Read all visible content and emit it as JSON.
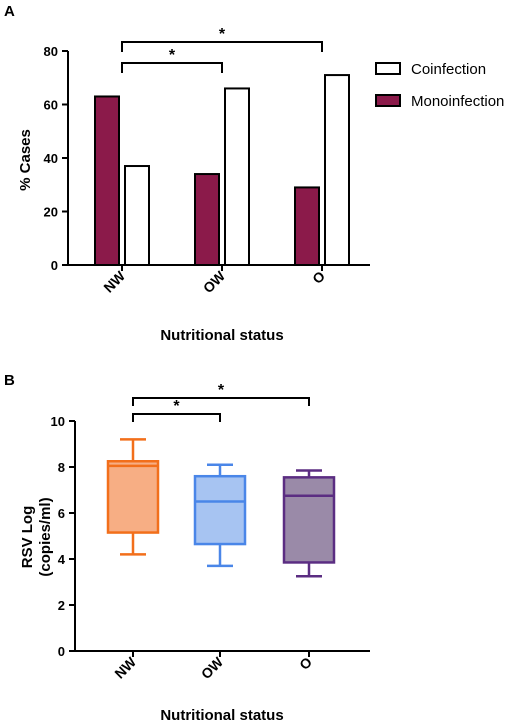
{
  "chart_data": [
    {
      "panel": "A",
      "type": "bar",
      "categories": [
        "NW",
        "OW",
        "O"
      ],
      "series": [
        {
          "name": "Monoinfection",
          "values": [
            63,
            34,
            29
          ],
          "color": "#8b1a4a"
        },
        {
          "name": "Coinfection",
          "values": [
            37,
            66,
            71
          ],
          "color": "#ffffff"
        }
      ],
      "ylabel": "% Cases",
      "xlabel": "Nutritional status",
      "ylim": [
        0,
        80
      ],
      "yticks": [
        "0",
        "20",
        "40",
        "60",
        "80"
      ],
      "legend_position": "right",
      "significance": [
        {
          "from": "NW",
          "to": "OW",
          "label": "*"
        },
        {
          "from": "NW",
          "to": "O",
          "label": "*"
        }
      ]
    },
    {
      "panel": "B",
      "type": "box",
      "categories": [
        "NW",
        "OW",
        "O"
      ],
      "boxes": [
        {
          "category": "NW",
          "min": 4.2,
          "q1": 5.15,
          "median": 8.05,
          "q3": 8.25,
          "max": 9.2,
          "fill": "#f7ae84",
          "stroke": "#f26f1b"
        },
        {
          "category": "OW",
          "min": 3.7,
          "q1": 4.65,
          "median": 6.5,
          "q3": 7.6,
          "max": 8.1,
          "fill": "#a7c4f2",
          "stroke": "#4a86e8"
        },
        {
          "category": "O",
          "min": 3.25,
          "q1": 3.85,
          "median": 6.75,
          "q3": 7.55,
          "max": 7.85,
          "fill": "#9a8aa8",
          "stroke": "#5b2d82"
        }
      ],
      "ylabel": "RSV Log\n(copies/ml)",
      "xlabel": "Nutritional status",
      "ylim": [
        0,
        10
      ],
      "yticks": [
        "0",
        "2",
        "4",
        "6",
        "8",
        "10"
      ],
      "significance": [
        {
          "from": "NW",
          "to": "OW",
          "label": "*"
        },
        {
          "from": "NW",
          "to": "O",
          "label": "*"
        }
      ]
    }
  ],
  "panelA": {
    "letter": "A",
    "xlabel": "Nutritional status",
    "ylabel": "% Cases"
  },
  "panelB": {
    "letter": "B",
    "xlabel": "Nutritional status",
    "ylabel_line1": "RSV Log",
    "ylabel_line2": "(copies/ml)"
  }
}
